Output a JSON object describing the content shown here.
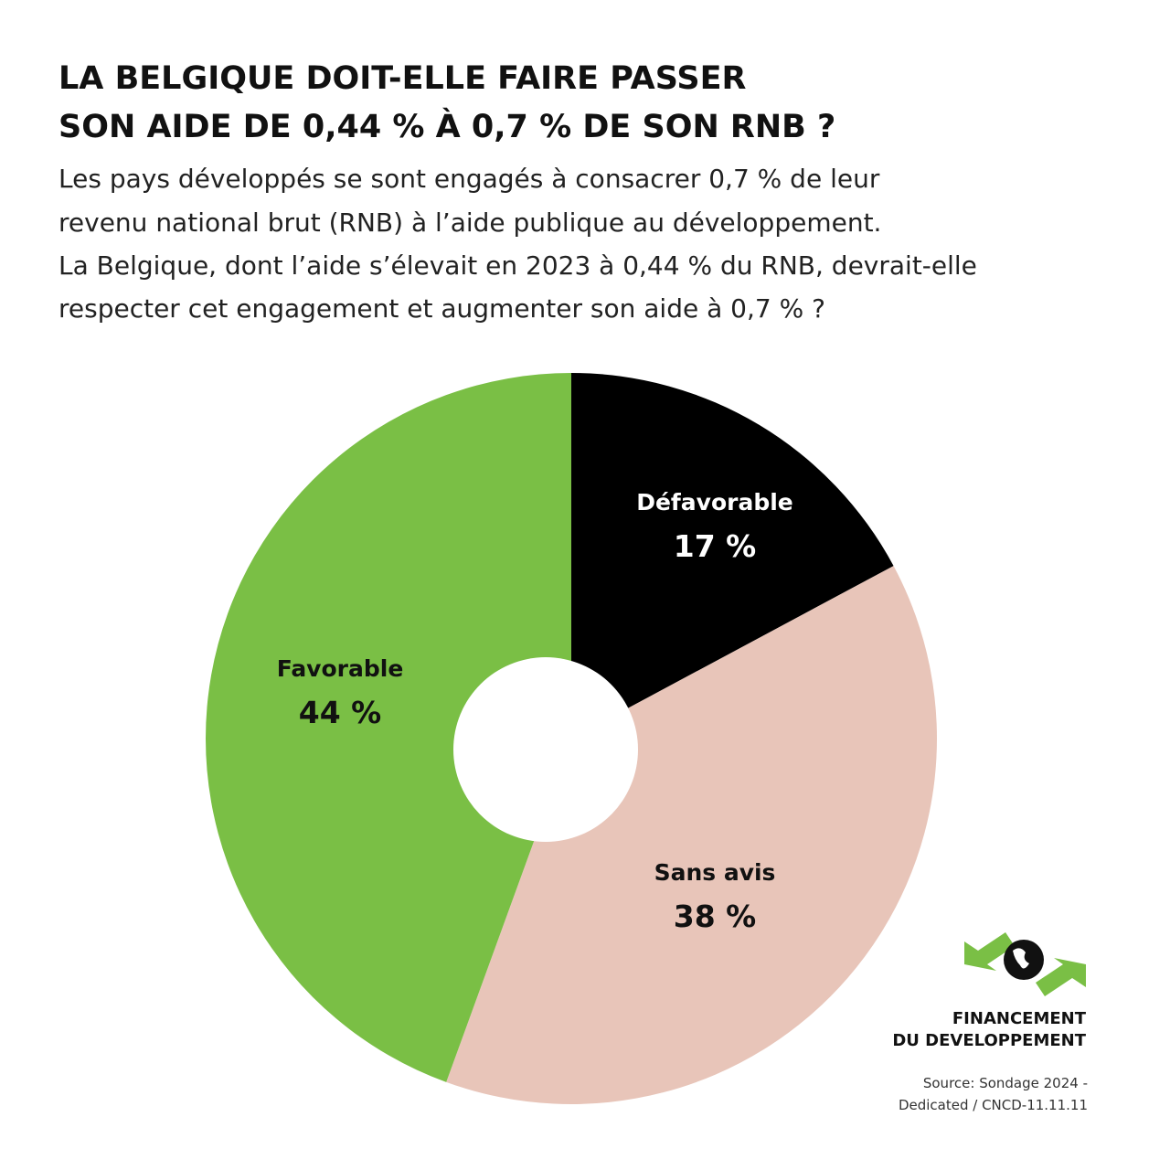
{
  "chart_data": {
    "type": "pie",
    "title": [
      "LA BELGIQUE DOIT-ELLE FAIRE PASSER",
      "SON AIDE DE 0,44 % À 0,7 % DE SON RNB ?"
    ],
    "subtitle": [
      "Les pays développés se sont engagés à consacrer 0,7 % de leur",
      "revenu national brut (RNB) à l’aide publique au développement.",
      "La Belgique, dont l’aide s’élevait en 2023 à 0,44 % du RNB, devrait-elle",
      "respecter cet engagement et augmenter son aide à 0,7 % ?"
    ],
    "categories": [
      "Défavorable",
      "Sans avis",
      "Favorable"
    ],
    "values": [
      17,
      38,
      44
    ],
    "value_labels": [
      "17 %",
      "38 %",
      "44 %"
    ],
    "colors": [
      "#000000",
      "#e8c5b9",
      "#7abf45"
    ],
    "label_colors": [
      "#ffffff",
      "#111111",
      "#111111"
    ]
  },
  "logo": [
    "FINANCEMENT",
    "DU DEVELOPPEMENT"
  ],
  "source": [
    "Source: Sondage 2024 -",
    "Dedicated /  CNCD-11.11.11"
  ]
}
